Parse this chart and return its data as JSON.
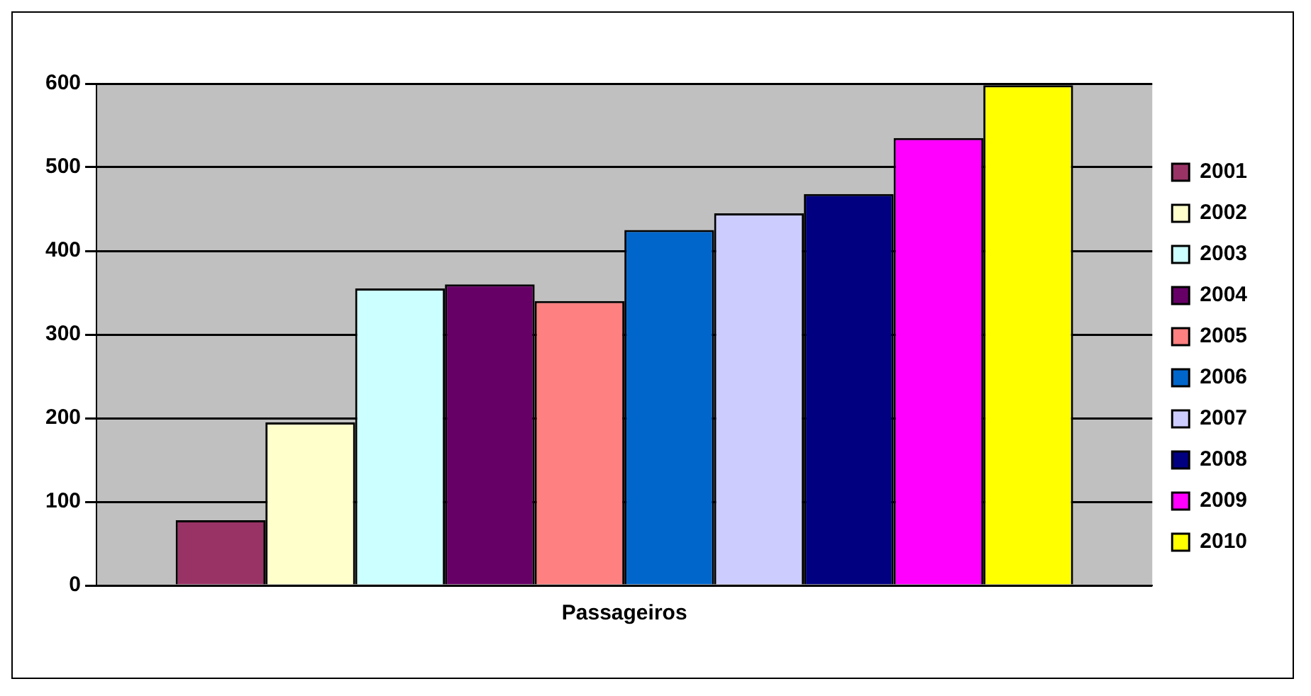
{
  "chart_data": {
    "type": "bar",
    "categories": [
      "Passageiros"
    ],
    "series": [
      {
        "name": "2001",
        "color": "#993366",
        "values": [
          78
        ]
      },
      {
        "name": "2002",
        "color": "#ffffcc",
        "values": [
          195
        ]
      },
      {
        "name": "2003",
        "color": "#ccffff",
        "values": [
          355
        ]
      },
      {
        "name": "2004",
        "color": "#660066",
        "values": [
          360
        ]
      },
      {
        "name": "2005",
        "color": "#ff8080",
        "values": [
          340
        ]
      },
      {
        "name": "2006",
        "color": "#0066cc",
        "values": [
          425
        ]
      },
      {
        "name": "2007",
        "color": "#ccccff",
        "values": [
          445
        ]
      },
      {
        "name": "2008",
        "color": "#000080",
        "values": [
          468
        ]
      },
      {
        "name": "2009",
        "color": "#ff00ff",
        "values": [
          535
        ]
      },
      {
        "name": "2010",
        "color": "#ffff00",
        "values": [
          598
        ]
      }
    ],
    "ylim": [
      0,
      600
    ],
    "yticks": [
      0,
      100,
      200,
      300,
      400,
      500,
      600
    ],
    "grid": "y",
    "legend": "right"
  }
}
